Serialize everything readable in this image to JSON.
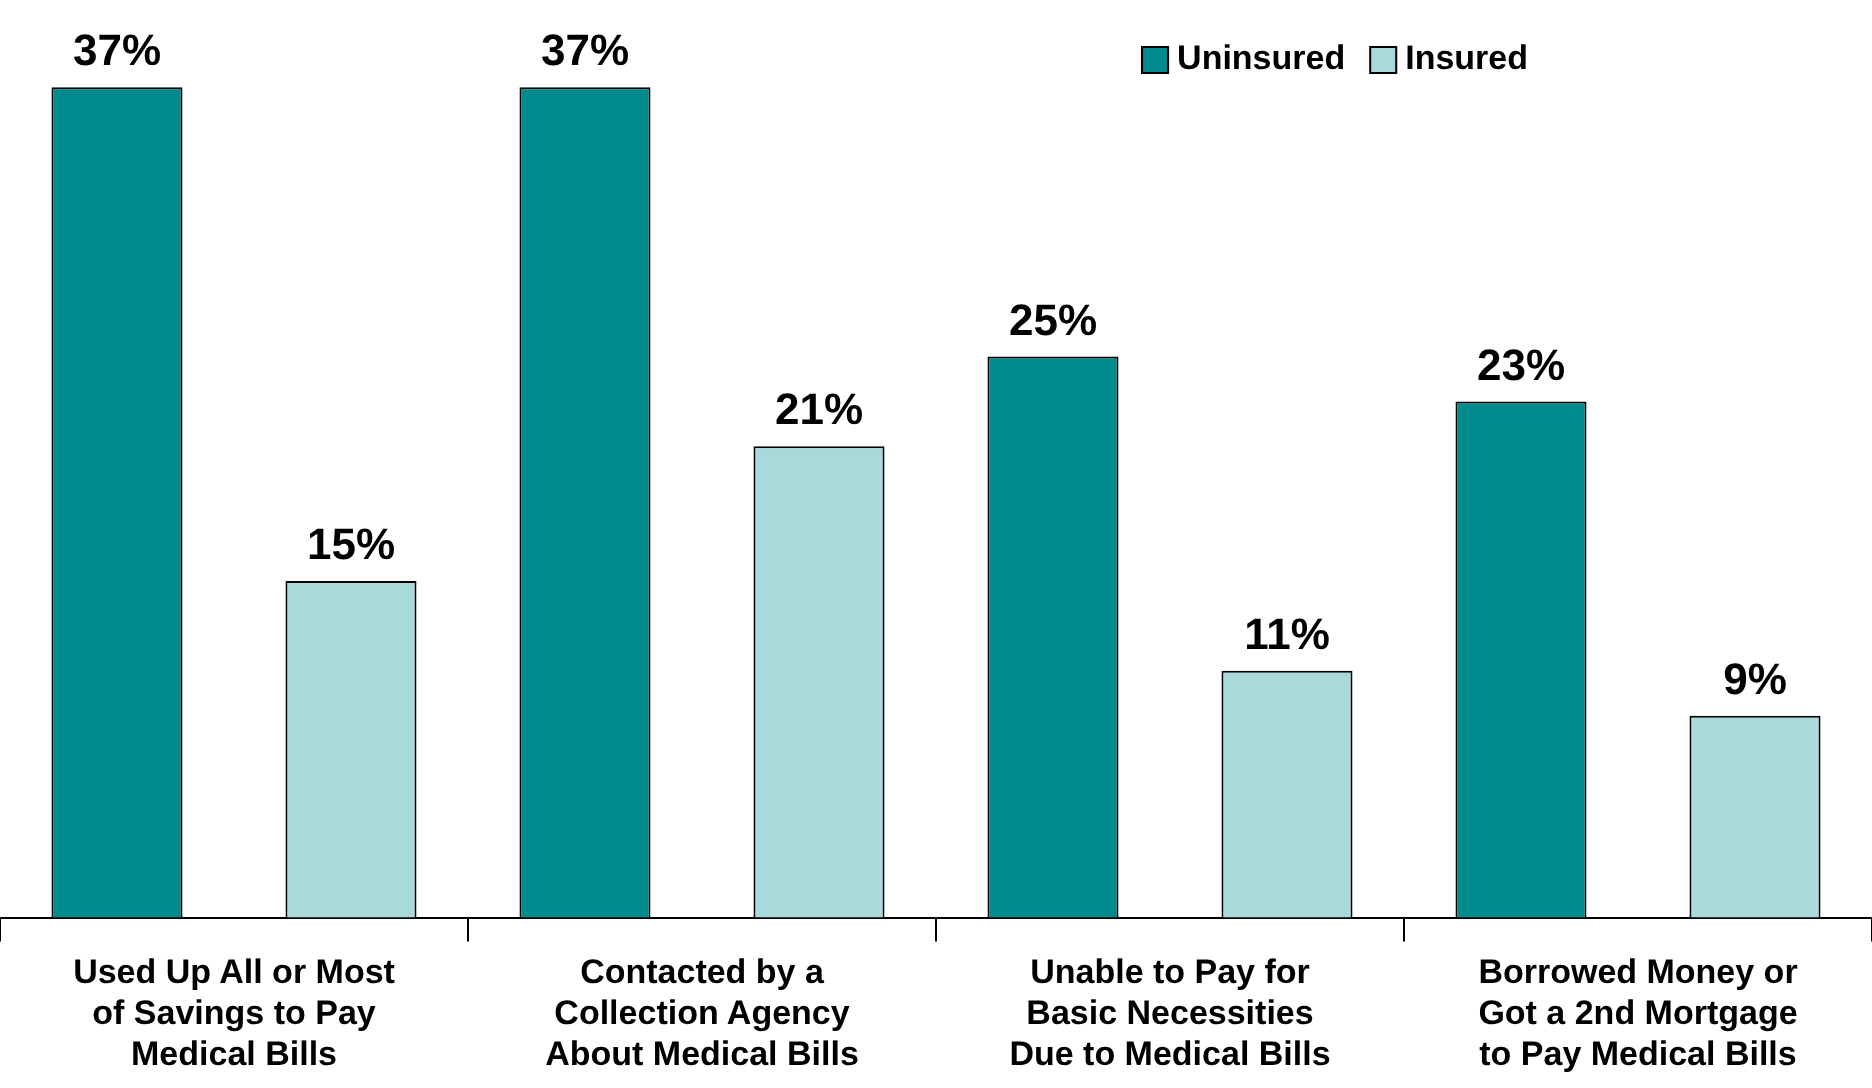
{
  "chart_data": {
    "type": "bar",
    "categories": [
      "Used Up All or Most of Savings to Pay Medical Bills",
      "Contacted by a Collection Agency About Medical Bills",
      "Unable to Pay for Basic Necessities Due to Medical Bills",
      "Borrowed Money or Got a 2nd Mortgage to Pay Medical Bills"
    ],
    "series": [
      {
        "name": "Uninsured",
        "color": "#008b8f",
        "values": [
          37,
          37,
          25,
          23
        ],
        "value_labels": [
          "37%",
          "37%",
          "25%",
          "23%"
        ]
      },
      {
        "name": "Insured",
        "color": "#aad9dc",
        "values": [
          15,
          21,
          11,
          9
        ],
        "value_labels": [
          "15%",
          "21%",
          "11%",
          "9%"
        ]
      }
    ],
    "legend": "top right",
    "tick_labels": "x",
    "grid": false
  }
}
